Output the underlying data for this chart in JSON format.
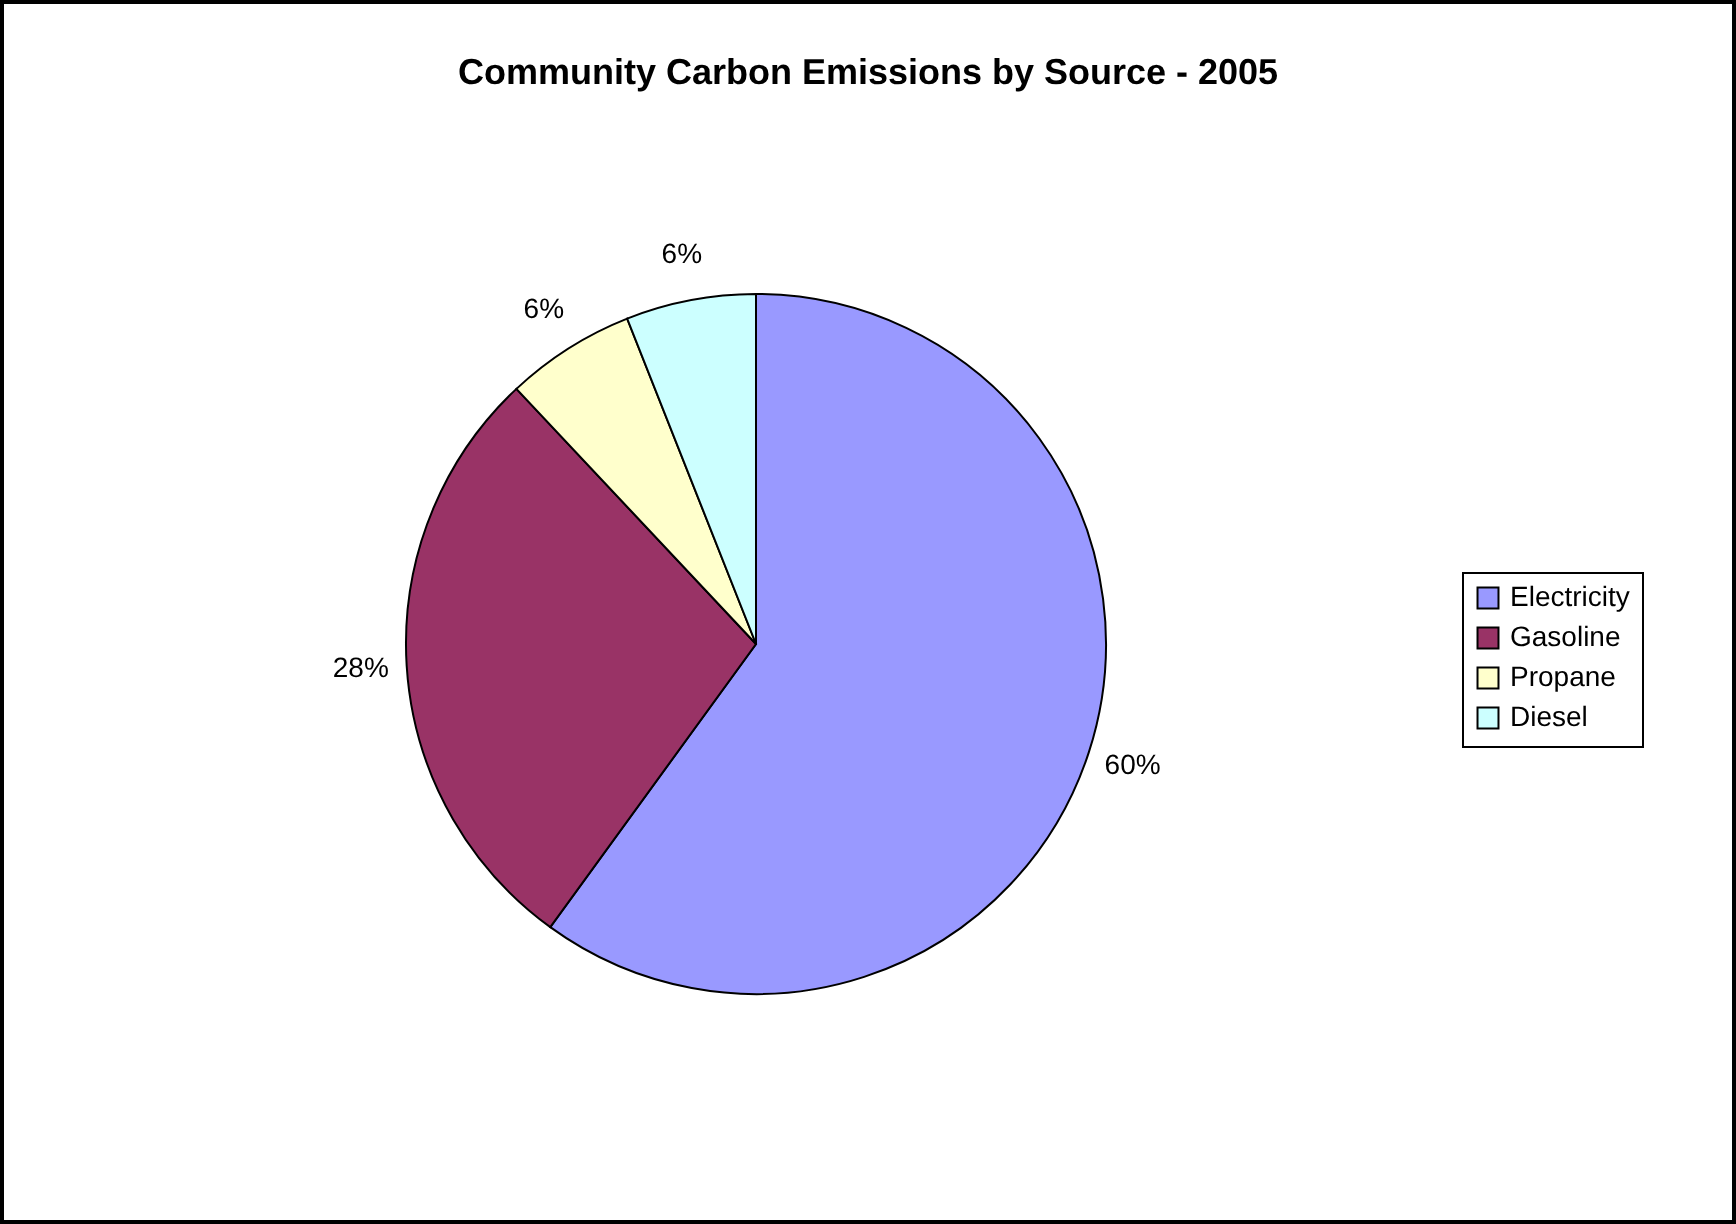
{
  "chart_data": {
    "type": "pie",
    "title": "Community Carbon Emissions by Source - 2005",
    "categories": [
      "Electricity",
      "Gasoline",
      "Propane",
      "Diesel"
    ],
    "values": [
      60,
      28,
      6,
      6
    ],
    "colors": [
      "#9999ff",
      "#993366",
      "#ffffcc",
      "#ccffff"
    ],
    "value_labels": [
      "60%",
      "28%",
      "6%",
      "6%"
    ],
    "legend": "right"
  }
}
